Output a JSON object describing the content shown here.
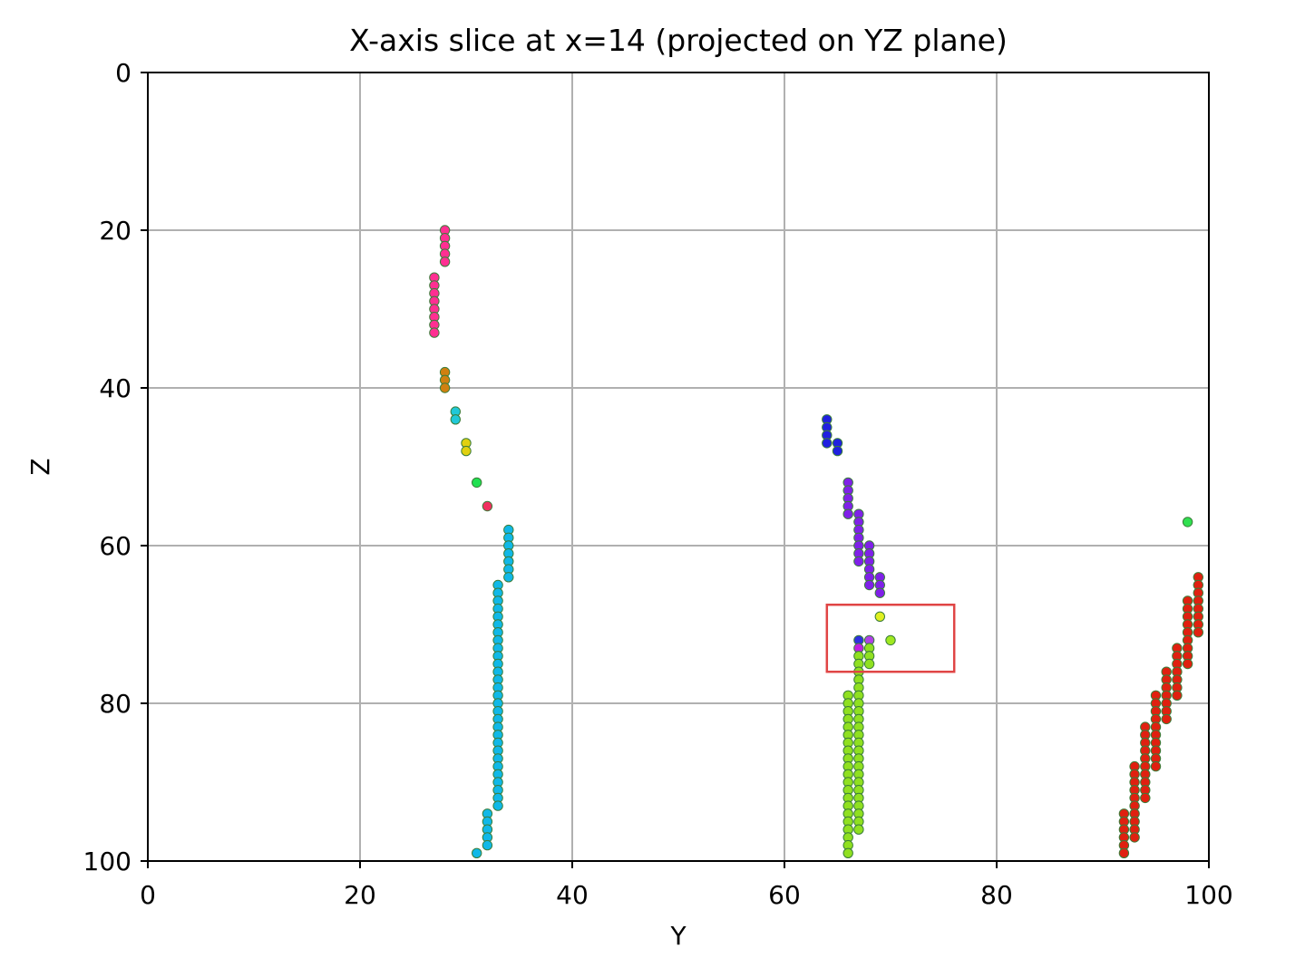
{
  "chart_data": {
    "type": "scatter",
    "title": "X-axis slice at x=14 (projected on YZ plane)",
    "xlabel": "Y",
    "ylabel": "Z",
    "xlim": [
      0,
      100
    ],
    "ylim": [
      100,
      0
    ],
    "y_axis_inverted": true,
    "xticks": [
      "0",
      "20",
      "40",
      "60",
      "80",
      "100"
    ],
    "yticks": [
      "0",
      "20",
      "40",
      "60",
      "80",
      "100"
    ],
    "grid": true,
    "legend": false,
    "colors": {
      "grid": "#b0b0b0",
      "axis": "#000000",
      "marker_edge": "#3a7d3a",
      "highlight_box": "#e04545"
    },
    "highlight_box": {
      "y_range": [
        64,
        76
      ],
      "z_range": [
        67.5,
        76
      ]
    },
    "series": [
      {
        "color": "#ff2f92",
        "points": [
          [
            28,
            20
          ],
          [
            28,
            21
          ],
          [
            28,
            22
          ],
          [
            28,
            23
          ],
          [
            28,
            24
          ],
          [
            27,
            26
          ],
          [
            27,
            27
          ],
          [
            27,
            28
          ],
          [
            27,
            29
          ],
          [
            27,
            30
          ],
          [
            27,
            31
          ],
          [
            27,
            32
          ],
          [
            27,
            33
          ]
        ]
      },
      {
        "color": "#d08010",
        "points": [
          [
            28,
            38
          ],
          [
            28,
            39
          ],
          [
            28,
            40
          ]
        ]
      },
      {
        "color": "#20c8d8",
        "points": [
          [
            29,
            43
          ],
          [
            29,
            44
          ]
        ]
      },
      {
        "color": "#e0d010",
        "points": [
          [
            30,
            47
          ],
          [
            30,
            48
          ]
        ]
      },
      {
        "color": "#20e050",
        "points": [
          [
            31,
            52
          ]
        ]
      },
      {
        "color": "#f03060",
        "points": [
          [
            32,
            55
          ]
        ]
      },
      {
        "color": "#10b8e8",
        "points": [
          [
            34,
            58
          ],
          [
            34,
            59
          ],
          [
            34,
            60
          ],
          [
            34,
            61
          ],
          [
            34,
            62
          ],
          [
            34,
            63
          ],
          [
            34,
            64
          ],
          [
            33,
            65
          ],
          [
            33,
            66
          ],
          [
            33,
            67
          ],
          [
            33,
            68
          ],
          [
            33,
            69
          ],
          [
            33,
            70
          ],
          [
            33,
            71
          ],
          [
            33,
            72
          ],
          [
            33,
            73
          ],
          [
            33,
            74
          ],
          [
            33,
            75
          ],
          [
            33,
            76
          ],
          [
            33,
            77
          ],
          [
            33,
            78
          ],
          [
            33,
            79
          ],
          [
            33,
            80
          ],
          [
            33,
            81
          ],
          [
            33,
            82
          ],
          [
            33,
            83
          ],
          [
            33,
            84
          ],
          [
            33,
            85
          ],
          [
            33,
            86
          ],
          [
            33,
            87
          ],
          [
            33,
            88
          ],
          [
            33,
            89
          ],
          [
            33,
            90
          ],
          [
            33,
            91
          ],
          [
            33,
            92
          ],
          [
            33,
            93
          ],
          [
            32,
            94
          ],
          [
            32,
            95
          ],
          [
            32,
            96
          ],
          [
            32,
            97
          ],
          [
            32,
            98
          ],
          [
            31,
            99
          ]
        ]
      },
      {
        "color": "#2020e0",
        "points": [
          [
            64,
            44
          ],
          [
            64,
            45
          ],
          [
            64,
            46
          ],
          [
            64,
            47
          ],
          [
            65,
            47
          ],
          [
            65,
            48
          ]
        ]
      },
      {
        "color": "#8020e8",
        "points": [
          [
            66,
            52
          ],
          [
            66,
            53
          ],
          [
            66,
            54
          ],
          [
            66,
            55
          ],
          [
            66,
            56
          ],
          [
            67,
            56
          ],
          [
            67,
            57
          ],
          [
            67,
            58
          ],
          [
            67,
            59
          ],
          [
            67,
            60
          ],
          [
            67,
            61
          ],
          [
            67,
            62
          ],
          [
            68,
            60
          ],
          [
            68,
            61
          ],
          [
            68,
            62
          ],
          [
            68,
            63
          ],
          [
            68,
            64
          ],
          [
            68,
            65
          ],
          [
            69,
            64
          ],
          [
            69,
            65
          ],
          [
            69,
            66
          ]
        ]
      },
      {
        "color": "#e0f020",
        "points": [
          [
            69,
            69
          ]
        ]
      },
      {
        "color": "#a0e820",
        "points": [
          [
            70,
            72
          ]
        ]
      },
      {
        "color": "#3030e0",
        "points": [
          [
            67,
            72
          ]
        ]
      },
      {
        "color": "#b040e8",
        "points": [
          [
            68,
            72
          ]
        ]
      },
      {
        "color": "#c020e0",
        "points": [
          [
            67,
            73
          ]
        ]
      },
      {
        "color": "#90e020",
        "points": [
          [
            68,
            73
          ],
          [
            68,
            74
          ],
          [
            68,
            75
          ],
          [
            67,
            74
          ],
          [
            67,
            75
          ],
          [
            67,
            76
          ],
          [
            67,
            77
          ],
          [
            67,
            78
          ],
          [
            67,
            79
          ],
          [
            67,
            80
          ],
          [
            67,
            81
          ],
          [
            67,
            82
          ],
          [
            67,
            83
          ],
          [
            67,
            84
          ],
          [
            67,
            85
          ],
          [
            67,
            86
          ],
          [
            67,
            87
          ],
          [
            67,
            88
          ],
          [
            67,
            89
          ],
          [
            67,
            90
          ],
          [
            67,
            91
          ],
          [
            67,
            92
          ],
          [
            67,
            93
          ],
          [
            67,
            94
          ],
          [
            67,
            95
          ],
          [
            67,
            96
          ],
          [
            66,
            79
          ],
          [
            66,
            80
          ],
          [
            66,
            81
          ],
          [
            66,
            82
          ],
          [
            66,
            83
          ],
          [
            66,
            84
          ],
          [
            66,
            85
          ],
          [
            66,
            86
          ],
          [
            66,
            87
          ],
          [
            66,
            88
          ],
          [
            66,
            89
          ],
          [
            66,
            90
          ],
          [
            66,
            91
          ],
          [
            66,
            92
          ],
          [
            66,
            93
          ],
          [
            66,
            94
          ],
          [
            66,
            95
          ],
          [
            66,
            96
          ],
          [
            66,
            97
          ],
          [
            66,
            98
          ],
          [
            66,
            99
          ]
        ]
      },
      {
        "color": "#30e050",
        "points": [
          [
            98,
            57
          ]
        ]
      },
      {
        "color": "#e02010",
        "points": [
          [
            99,
            64
          ],
          [
            99,
            65
          ],
          [
            99,
            66
          ],
          [
            99,
            67
          ],
          [
            99,
            68
          ],
          [
            99,
            69
          ],
          [
            99,
            70
          ],
          [
            99,
            71
          ],
          [
            98,
            67
          ],
          [
            98,
            68
          ],
          [
            98,
            69
          ],
          [
            98,
            70
          ],
          [
            98,
            71
          ],
          [
            98,
            72
          ],
          [
            98,
            73
          ],
          [
            98,
            74
          ],
          [
            98,
            75
          ],
          [
            97,
            73
          ],
          [
            97,
            74
          ],
          [
            97,
            75
          ],
          [
            97,
            76
          ],
          [
            97,
            77
          ],
          [
            97,
            78
          ],
          [
            97,
            79
          ],
          [
            96,
            76
          ],
          [
            96,
            77
          ],
          [
            96,
            78
          ],
          [
            96,
            79
          ],
          [
            96,
            80
          ],
          [
            96,
            81
          ],
          [
            96,
            82
          ],
          [
            95,
            79
          ],
          [
            95,
            80
          ],
          [
            95,
            81
          ],
          [
            95,
            82
          ],
          [
            95,
            83
          ],
          [
            95,
            84
          ],
          [
            95,
            85
          ],
          [
            95,
            86
          ],
          [
            95,
            87
          ],
          [
            95,
            88
          ],
          [
            94,
            83
          ],
          [
            94,
            84
          ],
          [
            94,
            85
          ],
          [
            94,
            86
          ],
          [
            94,
            87
          ],
          [
            94,
            88
          ],
          [
            94,
            89
          ],
          [
            94,
            90
          ],
          [
            94,
            91
          ],
          [
            94,
            92
          ],
          [
            93,
            88
          ],
          [
            93,
            89
          ],
          [
            93,
            90
          ],
          [
            93,
            91
          ],
          [
            93,
            92
          ],
          [
            93,
            93
          ],
          [
            93,
            94
          ],
          [
            93,
            95
          ],
          [
            93,
            96
          ],
          [
            93,
            97
          ],
          [
            92,
            94
          ],
          [
            92,
            95
          ],
          [
            92,
            96
          ],
          [
            92,
            97
          ],
          [
            92,
            98
          ],
          [
            92,
            99
          ]
        ]
      }
    ]
  }
}
